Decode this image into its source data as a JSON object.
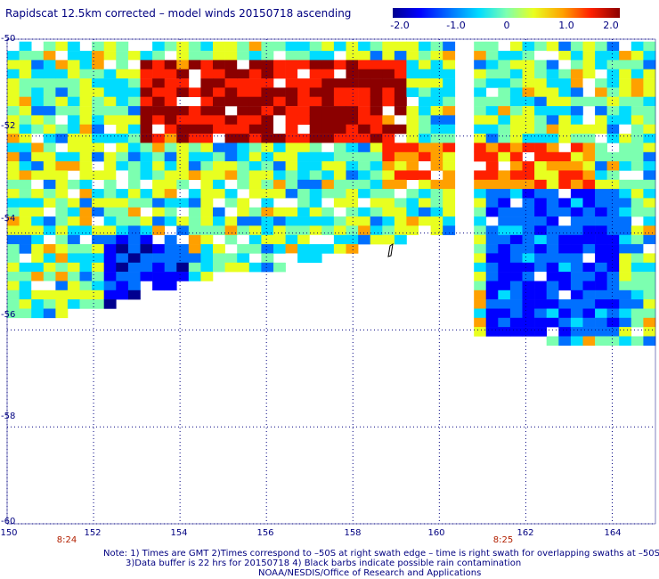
{
  "title": "Rapidscat 12.5km corrected – model winds 20150718 ascending",
  "colorbar": {
    "ticks": [
      "-2.0",
      "-1.0",
      "0",
      "1.0",
      "2.0"
    ],
    "range": [
      -2.0,
      2.0
    ],
    "colors": [
      "#00008f",
      "#0000ff",
      "#0070ff",
      "#00dcff",
      "#7cffb0",
      "#e8ff20",
      "#ffa000",
      "#ff2000",
      "#8b0000"
    ]
  },
  "axes": {
    "lat_labels": [
      "-50",
      "-52",
      "-54",
      "-56",
      "-58",
      "-60"
    ],
    "lon_labels": [
      "150",
      "152",
      "154",
      "156",
      "158",
      "160",
      "162",
      "164"
    ],
    "time_labels": [
      "8:24",
      "8:25"
    ]
  },
  "notes": {
    "line1": "Note: 1) Times are GMT 2)Times correspond to –50S at right swath edge – time is right swath for overlapping swaths at –50S",
    "line2": "3)Data buffer is 22 hrs for 20150718 4) Black barbs indicate possible rain contamination",
    "line3": "NOAA/NESDIS/Office of Research and Applications"
  },
  "chart_data": {
    "type": "heatmap",
    "title": "Rapidscat 12.5km corrected – model winds 20150718 ascending",
    "x_range": [
      150,
      165
    ],
    "y_range": [
      -60,
      -50
    ],
    "x_ticks": [
      150,
      152,
      154,
      156,
      158,
      160,
      162,
      164
    ],
    "y_ticks": [
      -50,
      -52,
      -54,
      -56,
      -58,
      -60
    ],
    "value_range": [
      -2.0,
      2.0
    ],
    "grid": true,
    "swaths": [
      {
        "name": "left swath",
        "time": "8:24",
        "lon_range": [
          150,
          160.3
        ],
        "lat_south_edge": [
          [
            150,
            -55.7
          ],
          [
            151.8,
            -55.5
          ],
          [
            153.3,
            -55.1
          ],
          [
            154.5,
            -54.8
          ],
          [
            156,
            -54.7
          ],
          [
            157.3,
            -54.4
          ],
          [
            158,
            -54.2
          ],
          [
            159.5,
            -54.0
          ],
          [
            160.3,
            -54.0
          ]
        ]
      },
      {
        "name": "right swath",
        "time": "8:25",
        "lon_range": [
          160.8,
          165
        ],
        "lat_south_edge": [
          [
            160.8,
            -56.0
          ],
          [
            162,
            -56.0
          ],
          [
            163,
            -56.3
          ],
          [
            164,
            -56.3
          ],
          [
            165,
            -56.2
          ]
        ]
      }
    ],
    "regions": [
      {
        "description": "strong positive",
        "lon": [
          153,
          159
        ],
        "lat": [
          -52,
          -50.3
        ],
        "value": 2.0
      },
      {
        "description": "positive band",
        "lon": [
          158.5,
          163.5
        ],
        "lat": [
          -53,
          -52
        ],
        "value": 1.3
      },
      {
        "description": "negative",
        "lon": [
          152,
          154
        ],
        "lat": [
          -55.5,
          -54
        ],
        "value": -1.5
      },
      {
        "description": "negative",
        "lon": [
          161,
          164
        ],
        "lat": [
          -56,
          -53
        ],
        "value": -1.3
      }
    ]
  }
}
